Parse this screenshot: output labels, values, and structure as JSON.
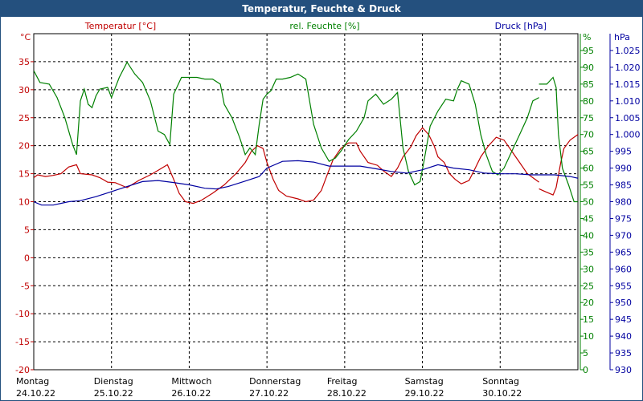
{
  "chart_data": {
    "type": "line",
    "title": "Temperatur, Feuchte & Druck",
    "x_categories": [
      {
        "day": "Montag",
        "date": "24.10.22"
      },
      {
        "day": "Dienstag",
        "date": "25.10.22"
      },
      {
        "day": "Mittwoch",
        "date": "26.10.22"
      },
      {
        "day": "Donnerstag",
        "date": "27.10.22"
      },
      {
        "day": "Freitag",
        "date": "28.10.22"
      },
      {
        "day": "Samstag",
        "date": "29.10.22"
      },
      {
        "day": "Sonntag",
        "date": "30.10.22"
      }
    ],
    "x_range_days": [
      0,
      7
    ],
    "grid": true,
    "axes": {
      "temperature": {
        "label": "Temperatur [°C]",
        "unit": "°C",
        "range": [
          -20,
          40
        ],
        "ticks": [
          -20,
          -15,
          -10,
          -5,
          0,
          5,
          10,
          15,
          20,
          25,
          30,
          35
        ],
        "side": "left",
        "color": "#c00000"
      },
      "humidity": {
        "label": "rel. Feuchte [%]",
        "unit": "%",
        "range": [
          0,
          100
        ],
        "ticks": [
          "0",
          "5",
          "10",
          "15",
          "20",
          "25",
          "30",
          "35",
          "40",
          "45",
          "50",
          "55",
          "60",
          "65",
          "70",
          "75",
          "80",
          "85",
          "90",
          "95"
        ],
        "side": "right",
        "color": "#008000"
      },
      "pressure": {
        "label": "Druck [hPa]",
        "unit": "hPa",
        "range": [
          930,
          1030
        ],
        "ticks": [
          "930",
          "935",
          "940",
          "945",
          "950",
          "955",
          "960",
          "965",
          "970",
          "975",
          "980",
          "985",
          "990",
          "995",
          "1.000",
          "1.005",
          "1.010",
          "1.015",
          "1.020",
          "1.025"
        ],
        "side": "right",
        "color": "#0000a0"
      }
    },
    "series": [
      {
        "name": "Temperatur [°C]",
        "axis": "temperature",
        "color": "#c00000",
        "segments": [
          [
            [
              0.0,
              14.3
            ],
            [
              0.05,
              14.8
            ],
            [
              0.15,
              14.5
            ],
            [
              0.25,
              14.7
            ],
            [
              0.35,
              15.0
            ],
            [
              0.45,
              16.2
            ],
            [
              0.55,
              16.6
            ],
            [
              0.6,
              15.0
            ],
            [
              0.75,
              14.8
            ],
            [
              0.85,
              14.3
            ],
            [
              0.95,
              13.5
            ],
            [
              1.05,
              13.4
            ],
            [
              1.2,
              12.5
            ],
            [
              1.35,
              13.8
            ],
            [
              1.5,
              14.8
            ],
            [
              1.6,
              15.6
            ],
            [
              1.72,
              16.6
            ],
            [
              1.8,
              14.0
            ],
            [
              1.87,
              11.5
            ],
            [
              1.95,
              10.0
            ],
            [
              2.05,
              9.7
            ],
            [
              2.15,
              10.2
            ],
            [
              2.3,
              11.5
            ],
            [
              2.45,
              13.0
            ],
            [
              2.6,
              15.0
            ],
            [
              2.72,
              17.0
            ],
            [
              2.8,
              19.0
            ],
            [
              2.88,
              20.0
            ],
            [
              2.95,
              19.5
            ],
            [
              3.0,
              17.0
            ],
            [
              3.08,
              14.0
            ],
            [
              3.15,
              12.0
            ],
            [
              3.25,
              11.0
            ],
            [
              3.4,
              10.5
            ],
            [
              3.5,
              10.0
            ],
            [
              3.6,
              10.3
            ],
            [
              3.7,
              12.0
            ],
            [
              3.78,
              15.0
            ],
            [
              3.85,
              17.5
            ],
            [
              3.95,
              19.5
            ],
            [
              4.05,
              20.5
            ],
            [
              4.15,
              20.5
            ],
            [
              4.2,
              19.0
            ],
            [
              4.3,
              17.0
            ],
            [
              4.42,
              16.5
            ],
            [
              4.5,
              15.5
            ],
            [
              4.6,
              14.5
            ],
            [
              4.68,
              16.0
            ],
            [
              4.75,
              18.0
            ],
            [
              4.85,
              19.8
            ],
            [
              4.92,
              21.8
            ],
            [
              5.0,
              23.2
            ],
            [
              5.08,
              22.0
            ],
            [
              5.15,
              20.0
            ],
            [
              5.2,
              18.0
            ],
            [
              5.28,
              17.0
            ],
            [
              5.35,
              15.0
            ],
            [
              5.42,
              14.0
            ],
            [
              5.5,
              13.2
            ],
            [
              5.6,
              13.8
            ],
            [
              5.68,
              16.0
            ],
            [
              5.75,
              18.0
            ],
            [
              5.85,
              20.0
            ],
            [
              5.95,
              21.5
            ],
            [
              6.05,
              21.0
            ],
            [
              6.15,
              19.0
            ],
            [
              6.25,
              17.0
            ],
            [
              6.35,
              15.0
            ],
            [
              6.45,
              14.0
            ],
            [
              6.5,
              13.5
            ]
          ],
          [
            [
              6.5,
              12.3
            ],
            [
              6.58,
              11.8
            ],
            [
              6.68,
              11.2
            ],
            [
              6.72,
              12.5
            ],
            [
              6.78,
              17.0
            ],
            [
              6.82,
              19.5
            ],
            [
              6.9,
              21.0
            ],
            [
              7.0,
              22.0
            ],
            [
              7.07,
              21.5
            ],
            [
              7.12,
              20.5
            ],
            [
              7.18,
              19.0
            ],
            [
              7.25,
              16.5
            ],
            [
              7.32,
              14.0
            ],
            [
              7.4,
              13.2
            ],
            [
              7.47,
              13.0
            ]
          ]
        ]
      },
      {
        "name": "rel. Feuchte [%]",
        "axis": "humidity",
        "color": "#008000",
        "segments": [
          [
            [
              0.0,
              89.0
            ],
            [
              0.08,
              85.5
            ],
            [
              0.2,
              85.0
            ],
            [
              0.3,
              81.0
            ],
            [
              0.4,
              75.0
            ],
            [
              0.5,
              67.0
            ],
            [
              0.55,
              64.0
            ],
            [
              0.6,
              80.0
            ],
            [
              0.65,
              83.5
            ],
            [
              0.7,
              79.0
            ],
            [
              0.75,
              78.0
            ],
            [
              0.8,
              81.5
            ],
            [
              0.85,
              83.5
            ],
            [
              0.95,
              84.0
            ],
            [
              1.0,
              81.0
            ],
            [
              1.1,
              87.0
            ],
            [
              1.2,
              91.5
            ],
            [
              1.3,
              88.0
            ],
            [
              1.4,
              85.5
            ],
            [
              1.5,
              80.0
            ],
            [
              1.6,
              71.0
            ],
            [
              1.68,
              70.0
            ],
            [
              1.75,
              67.0
            ],
            [
              1.8,
              82.0
            ],
            [
              1.9,
              87.0
            ],
            [
              2.0,
              87.0
            ],
            [
              2.1,
              87.0
            ],
            [
              2.2,
              86.5
            ],
            [
              2.3,
              86.5
            ],
            [
              2.4,
              85.0
            ],
            [
              2.45,
              79.0
            ],
            [
              2.55,
              75.0
            ],
            [
              2.65,
              69.0
            ],
            [
              2.72,
              64.0
            ],
            [
              2.78,
              66.0
            ],
            [
              2.85,
              64.0
            ],
            [
              2.9,
              73.0
            ],
            [
              2.95,
              80.5
            ],
            [
              3.0,
              82.0
            ],
            [
              3.05,
              83.0
            ],
            [
              3.12,
              86.5
            ],
            [
              3.2,
              86.5
            ],
            [
              3.3,
              87.0
            ],
            [
              3.4,
              88.0
            ],
            [
              3.5,
              86.5
            ],
            [
              3.6,
              73.0
            ],
            [
              3.7,
              66.0
            ],
            [
              3.8,
              62.0
            ],
            [
              3.88,
              63.0
            ],
            [
              3.95,
              65.0
            ],
            [
              4.05,
              68.5
            ],
            [
              4.15,
              71.0
            ],
            [
              4.25,
              75.0
            ],
            [
              4.3,
              80.0
            ],
            [
              4.4,
              82.0
            ],
            [
              4.5,
              79.0
            ],
            [
              4.6,
              80.5
            ],
            [
              4.68,
              82.5
            ],
            [
              4.75,
              66.0
            ],
            [
              4.82,
              59.0
            ],
            [
              4.9,
              55.0
            ],
            [
              4.97,
              56.0
            ],
            [
              5.02,
              62.0
            ],
            [
              5.1,
              72.5
            ],
            [
              5.2,
              77.0
            ],
            [
              5.3,
              80.5
            ],
            [
              5.4,
              80.0
            ],
            [
              5.45,
              83.5
            ],
            [
              5.5,
              86.0
            ],
            [
              5.6,
              85.0
            ],
            [
              5.68,
              79.0
            ],
            [
              5.75,
              70.0
            ],
            [
              5.82,
              64.0
            ],
            [
              5.9,
              59.0
            ],
            [
              5.97,
              58.0
            ],
            [
              6.05,
              60.0
            ],
            [
              6.15,
              65.0
            ],
            [
              6.25,
              70.0
            ],
            [
              6.35,
              75.0
            ],
            [
              6.42,
              80.0
            ],
            [
              6.5,
              81.0
            ]
          ],
          [
            [
              6.5,
              85.0
            ],
            [
              6.6,
              85.0
            ],
            [
              6.68,
              87.0
            ],
            [
              6.72,
              84.0
            ],
            [
              6.75,
              70.0
            ],
            [
              6.8,
              60.0
            ],
            [
              6.88,
              55.0
            ],
            [
              6.95,
              50.0
            ],
            [
              7.02,
              50.0
            ],
            [
              7.08,
              56.0
            ],
            [
              7.15,
              66.0
            ],
            [
              7.22,
              75.0
            ],
            [
              7.3,
              79.0
            ],
            [
              7.4,
              79.0
            ],
            [
              7.47,
              79.0
            ]
          ]
        ]
      },
      {
        "name": "Druck [hPa]",
        "axis": "pressure",
        "color": "#0000a0",
        "segments": [
          [
            [
              0.0,
              980.0
            ],
            [
              0.1,
              979.0
            ],
            [
              0.25,
              979.0
            ],
            [
              0.45,
              980.0
            ],
            [
              0.6,
              980.3
            ],
            [
              0.8,
              981.5
            ],
            [
              1.0,
              983.0
            ],
            [
              1.2,
              984.5
            ],
            [
              1.4,
              986.0
            ],
            [
              1.6,
              986.3
            ],
            [
              1.8,
              985.7
            ],
            [
              2.0,
              985.0
            ],
            [
              2.2,
              984.0
            ],
            [
              2.35,
              983.8
            ],
            [
              2.5,
              984.5
            ],
            [
              2.7,
              986.0
            ],
            [
              2.9,
              987.5
            ],
            [
              3.0,
              990.0
            ],
            [
              3.2,
              992.0
            ],
            [
              3.4,
              992.2
            ],
            [
              3.6,
              991.8
            ],
            [
              3.8,
              990.6
            ],
            [
              4.0,
              990.6
            ],
            [
              4.2,
              990.6
            ],
            [
              4.4,
              989.8
            ],
            [
              4.6,
              989.0
            ],
            [
              4.8,
              988.5
            ],
            [
              5.0,
              989.5
            ],
            [
              5.2,
              991.0
            ],
            [
              5.4,
              990.0
            ],
            [
              5.6,
              989.5
            ],
            [
              5.8,
              988.5
            ],
            [
              6.0,
              988.3
            ],
            [
              6.2,
              988.3
            ],
            [
              6.4,
              988.0
            ],
            [
              6.5,
              988.0
            ]
          ],
          [
            [
              6.5,
              988.0
            ],
            [
              6.7,
              988.0
            ],
            [
              6.9,
              987.5
            ],
            [
              7.1,
              986.5
            ],
            [
              7.25,
              987.5
            ],
            [
              7.35,
              989.0
            ],
            [
              7.47,
              989.7
            ]
          ]
        ]
      }
    ]
  }
}
